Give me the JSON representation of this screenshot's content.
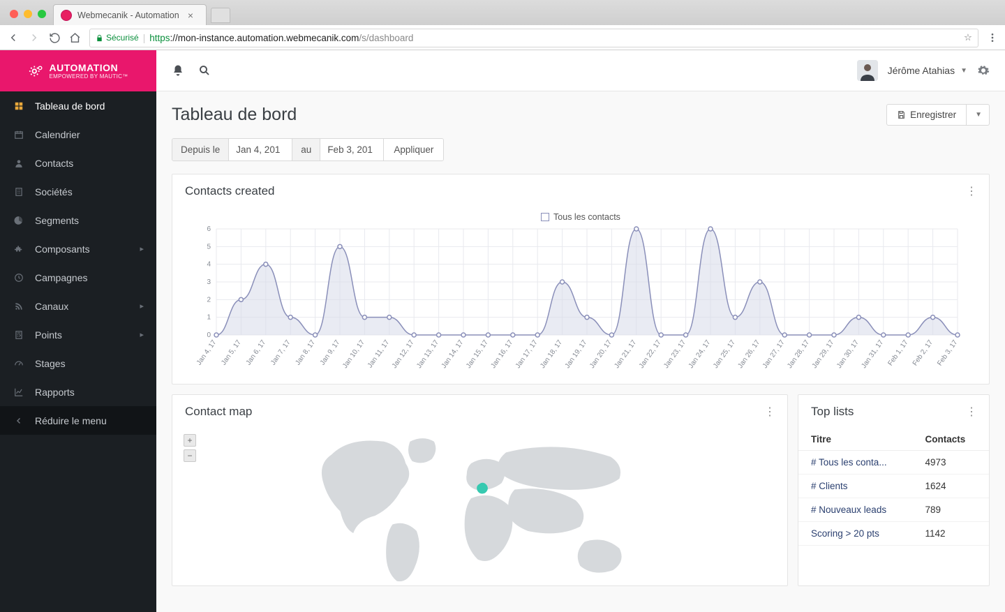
{
  "browser": {
    "tab_title": "Webmecanik - Automation",
    "url_proto": "https",
    "secure_label": "Sécurisé",
    "url_host": "://mon-instance.automation.webmecanik.com",
    "url_path": "/s/dashboard"
  },
  "brand": {
    "name": "AUTOMATION",
    "sub": "EMPOWERED BY MAUTIC™"
  },
  "sidebar": {
    "items": [
      {
        "label": "Tableau de bord",
        "icon": "grid",
        "active": true
      },
      {
        "label": "Calendrier",
        "icon": "calendar"
      },
      {
        "label": "Contacts",
        "icon": "user"
      },
      {
        "label": "Sociétés",
        "icon": "office"
      },
      {
        "label": "Segments",
        "icon": "pie"
      },
      {
        "label": "Composants",
        "icon": "puzzle",
        "has_children": true
      },
      {
        "label": "Campagnes",
        "icon": "clock"
      },
      {
        "label": "Canaux",
        "icon": "rss",
        "has_children": true
      },
      {
        "label": "Points",
        "icon": "calc",
        "has_children": true
      },
      {
        "label": "Stages",
        "icon": "tach"
      },
      {
        "label": "Rapports",
        "icon": "chart"
      }
    ],
    "collapse_label": "Réduire le menu"
  },
  "user": {
    "name": "Jérôme Atahias"
  },
  "page": {
    "title": "Tableau de bord",
    "save_label": "Enregistrer"
  },
  "filter": {
    "from_label": "Depuis le",
    "from_value": "Jan 4, 201",
    "to_label": "au",
    "to_value": "Feb 3, 201",
    "apply_label": "Appliquer"
  },
  "contacts_chart": {
    "title": "Contacts created",
    "legend_label": "Tous les contacts",
    "type": "line-area",
    "line_color": "#8a8fb9",
    "fill_color": "#d7daea",
    "fill_opacity": 0.55,
    "point_radius": 3,
    "grid_color": "#e8e9ee",
    "axis_color": "#c7c9d1",
    "label_color": "#858a93",
    "label_fontsize": 10,
    "ylim": [
      0,
      6
    ],
    "ytick_step": 1,
    "x_labels": [
      "Jan 4, 17",
      "Jan 5, 17",
      "Jan 6, 17",
      "Jan 7, 17",
      "Jan 8, 17",
      "Jan 9, 17",
      "Jan 10, 17",
      "Jan 11, 17",
      "Jan 12, 17",
      "Jan 13, 17",
      "Jan 14, 17",
      "Jan 15, 17",
      "Jan 16, 17",
      "Jan 17, 17",
      "Jan 18, 17",
      "Jan 19, 17",
      "Jan 20, 17",
      "Jan 21, 17",
      "Jan 22, 17",
      "Jan 23, 17",
      "Jan 24, 17",
      "Jan 25, 17",
      "Jan 26, 17",
      "Jan 27, 17",
      "Jan 28, 17",
      "Jan 29, 17",
      "Jan 30, 17",
      "Jan 31, 17",
      "Feb 1, 17",
      "Feb 2, 17",
      "Feb 3, 17"
    ],
    "values": [
      0,
      2,
      4,
      1,
      0,
      5,
      1,
      1,
      0,
      0,
      0,
      0,
      0,
      0,
      3,
      1,
      0,
      6,
      0,
      0,
      6,
      1,
      3,
      0,
      0,
      0,
      1,
      0,
      0,
      1,
      0
    ]
  },
  "contact_map": {
    "title": "Contact map",
    "land_color": "#d6d9dc",
    "highlight_color": "#36c9b0",
    "background": "#ffffff"
  },
  "top_lists": {
    "title": "Top lists",
    "columns": [
      "Titre",
      "Contacts"
    ],
    "rows": [
      {
        "title": "# Tous les conta...",
        "count": "4973"
      },
      {
        "title": "# Clients",
        "count": "1624"
      },
      {
        "title": "# Nouveaux leads",
        "count": "789"
      },
      {
        "title": "Scoring > 20 pts",
        "count": "1142"
      }
    ]
  }
}
